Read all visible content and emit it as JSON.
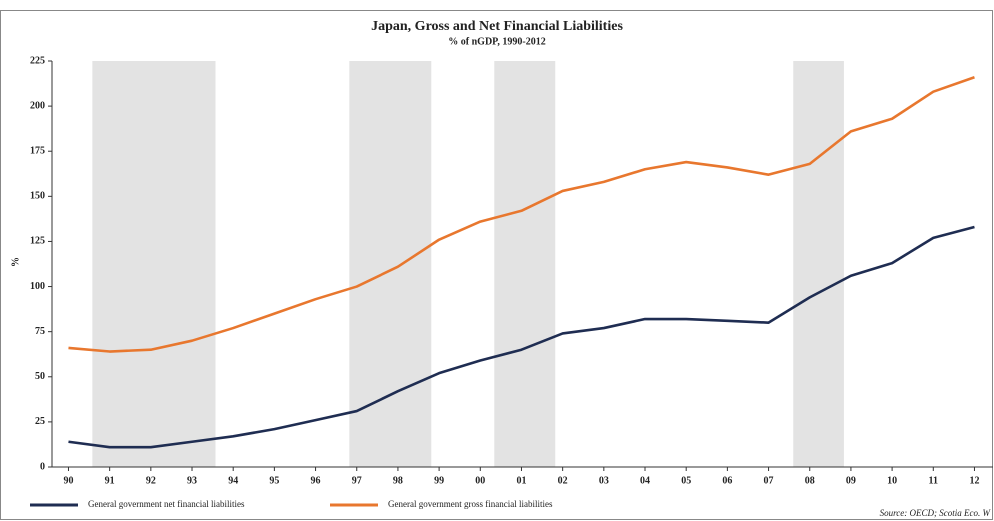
{
  "chart_data": {
    "type": "line",
    "title": "Japan, Gross and Net Financial Liabilities",
    "subtitle": "% of nGDP, 1990-2012",
    "y_label": "%",
    "source": "Source: OECD; Scotia Eco. W",
    "x": [
      1990,
      1991,
      1992,
      1993,
      1994,
      1995,
      1996,
      1997,
      1998,
      1999,
      2000,
      2001,
      2002,
      2003,
      2004,
      2005,
      2006,
      2007,
      2008,
      2009,
      2010,
      2011,
      2012
    ],
    "series": [
      {
        "name": "General government net financial liabilities",
        "color": "#1f2d52",
        "values": [
          14,
          11,
          11,
          14,
          17,
          21,
          26,
          31,
          42,
          52,
          59,
          65,
          74,
          77,
          82,
          82,
          81,
          80,
          94,
          106,
          113,
          127,
          133
        ]
      },
      {
        "name": "General government gross financial liabilities",
        "color": "#e8772e",
        "values": [
          66,
          64,
          65,
          70,
          77,
          85,
          93,
          100,
          111,
          126,
          136,
          142,
          153,
          158,
          165,
          169,
          166,
          162,
          168,
          186,
          193,
          208,
          216
        ]
      }
    ],
    "shaded_periods": [
      [
        1990.58,
        1993.57
      ],
      [
        1996.82,
        1998.81
      ],
      [
        2000.34,
        2001.82
      ],
      [
        2007.6,
        2008.83
      ]
    ],
    "shade_color": "#e3e3e3",
    "xlim": [
      1989.6,
      2012.45
    ],
    "xticks": [
      {
        "value": 1990,
        "label": "90"
      },
      {
        "value": 1991,
        "label": "91"
      },
      {
        "value": 1992,
        "label": "92"
      },
      {
        "value": 1993,
        "label": "93"
      },
      {
        "value": 1994,
        "label": "94"
      },
      {
        "value": 1995,
        "label": "95"
      },
      {
        "value": 1996,
        "label": "96"
      },
      {
        "value": 1997,
        "label": "97"
      },
      {
        "value": 1998,
        "label": "98"
      },
      {
        "value": 1999,
        "label": "99"
      },
      {
        "value": 2000,
        "label": "00"
      },
      {
        "value": 2001,
        "label": "01"
      },
      {
        "value": 2002,
        "label": "02"
      },
      {
        "value": 2003,
        "label": "03"
      },
      {
        "value": 2004,
        "label": "04"
      },
      {
        "value": 2005,
        "label": "05"
      },
      {
        "value": 2006,
        "label": "06"
      },
      {
        "value": 2007,
        "label": "07"
      },
      {
        "value": 2008,
        "label": "08"
      },
      {
        "value": 2009,
        "label": "09"
      },
      {
        "value": 2010,
        "label": "10"
      },
      {
        "value": 2011,
        "label": "11"
      },
      {
        "value": 2012,
        "label": "12"
      }
    ],
    "ylim": [
      0,
      225
    ],
    "yticks": [
      0,
      25,
      50,
      75,
      100,
      125,
      150,
      175,
      200,
      225
    ],
    "grid": false
  }
}
